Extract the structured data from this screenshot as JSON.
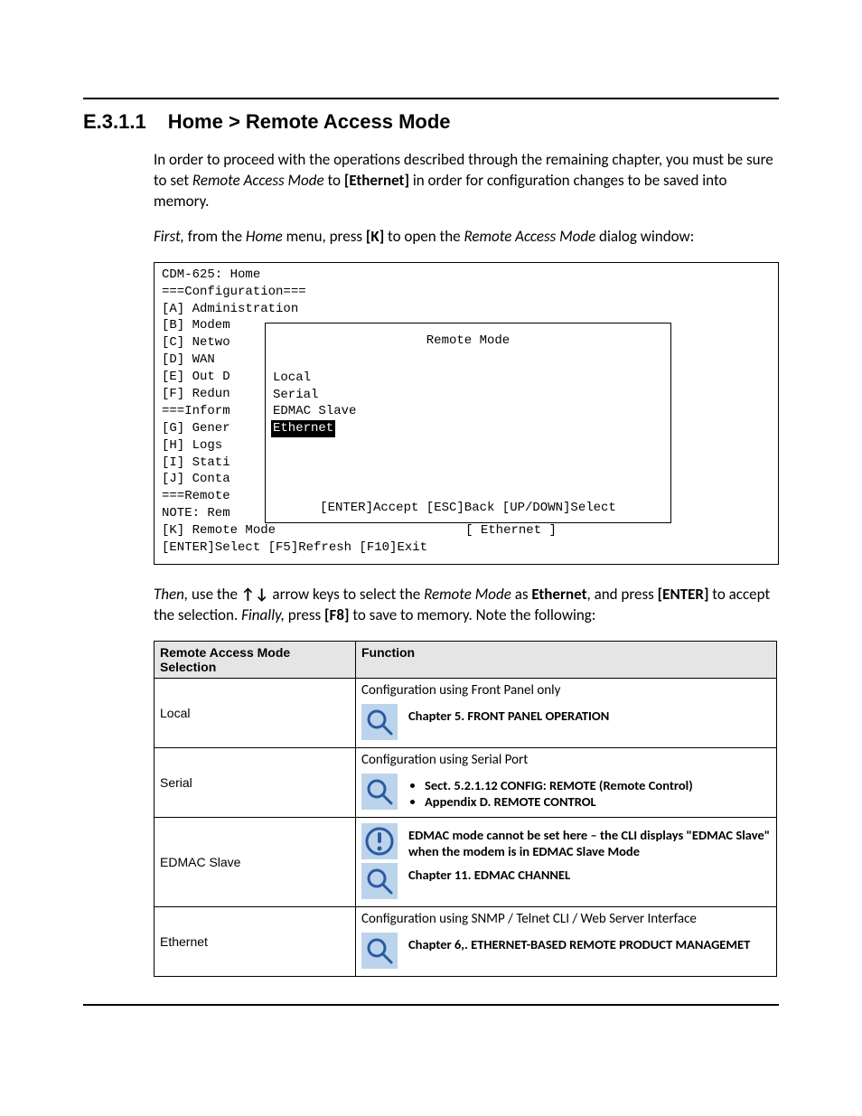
{
  "heading": {
    "number": "E.3.1.1",
    "title": "Home > Remote Access Mode"
  },
  "para1_a": "In order to proceed with the operations described through the remaining chapter, you must be sure to set ",
  "para1_b": "Remote Access Mode",
  "para1_c": " to ",
  "para1_d": "[Ethernet]",
  "para1_e": " in order for configuration changes to be saved into memory.",
  "para2_a_i": "First,",
  "para2_b": " from the ",
  "para2_c_i": "Home",
  "para2_d": " menu, press ",
  "para2_e_b": "[K]",
  "para2_f": " to open the ",
  "para2_g_i": "Remote Access Mode",
  "para2_h": " dialog window:",
  "cli": {
    "title": "CDM-625: Home",
    "blank": "",
    "cfg_hdr": "===Configuration===",
    "lines": [
      "[A] Administration",
      "[B] Modem",
      "[C] Netwo",
      "[D] WAN",
      "[E] Out D",
      "[F] Redun"
    ],
    "inf_hdr": "===Inform",
    "inf_lines": [
      "[G] Gener",
      "[H] Logs",
      "[I] Stati",
      "[J] Conta"
    ],
    "rem_hdr": "===Remote",
    "note": "NOTE: Rem",
    "k_line_a": "[K] Remote Mode",
    "k_line_b": "[ Ethernet ]",
    "footer": "[ENTER]Select [F5]Refresh [F10]Exit",
    "dialog": {
      "title": "Remote Mode",
      "opts": [
        "Local",
        "Serial",
        "EDMAC Slave",
        "Ethernet"
      ],
      "selected_index": 3,
      "hint": "[ENTER]Accept [ESC]Back [UP/DOWN]Select"
    }
  },
  "para3_a_i": "Then,",
  "para3_b": " use the ",
  "para3_arrows": "↑↓",
  "para3_c": " arrow keys to select the ",
  "para3_d_i": "Remote Mode",
  "para3_e": " as ",
  "para3_f_b": "Ethernet",
  "para3_g": ", and press ",
  "para3_h_b": "[ENTER]",
  "para3_i": " to accept the selection. ",
  "para3_j_i": "Finally,",
  "para3_k": " press ",
  "para3_l_b": "[F8]",
  "para3_m": " to save to memory. Note the following:",
  "table": {
    "h1": "Remote Access Mode Selection",
    "h2": "Function",
    "rows": [
      {
        "mode": "Local",
        "desc": "Configuration using Front Panel only",
        "blocks": [
          {
            "kind": "search",
            "bold_text": "Chapter 5. FRONT PANEL OPERATION"
          }
        ]
      },
      {
        "mode": "Serial",
        "desc": "Configuration using Serial Port",
        "blocks": [
          {
            "kind": "search",
            "bullets": [
              "Sect. 5.2.1.12 CONFIG: REMOTE (Remote Control)",
              "Appendix D. REMOTE CONTROL"
            ]
          }
        ]
      },
      {
        "mode": "EDMAC Slave",
        "desc": "",
        "blocks": [
          {
            "kind": "alert",
            "bold_text": "EDMAC mode cannot be set here – the CLI displays \"EDMAC Slave\" when the modem is in EDMAC Slave Mode"
          },
          {
            "kind": "search",
            "bold_text": "Chapter 11. EDMAC CHANNEL"
          }
        ]
      },
      {
        "mode": "Ethernet",
        "desc": "Configuration using SNMP / Telnet CLI / Web Server Interface",
        "blocks": [
          {
            "kind": "search",
            "bold_text": "Chapter 6,. ETHERNET-BASED REMOTE PRODUCT MANAGEMET"
          }
        ]
      }
    ]
  },
  "colors": {
    "icon_bg": "#bcd3ec",
    "search_stroke": "#2a5aa0",
    "alert_fill": "#2a5aa0",
    "table_header_bg": "#e5e5e5"
  }
}
